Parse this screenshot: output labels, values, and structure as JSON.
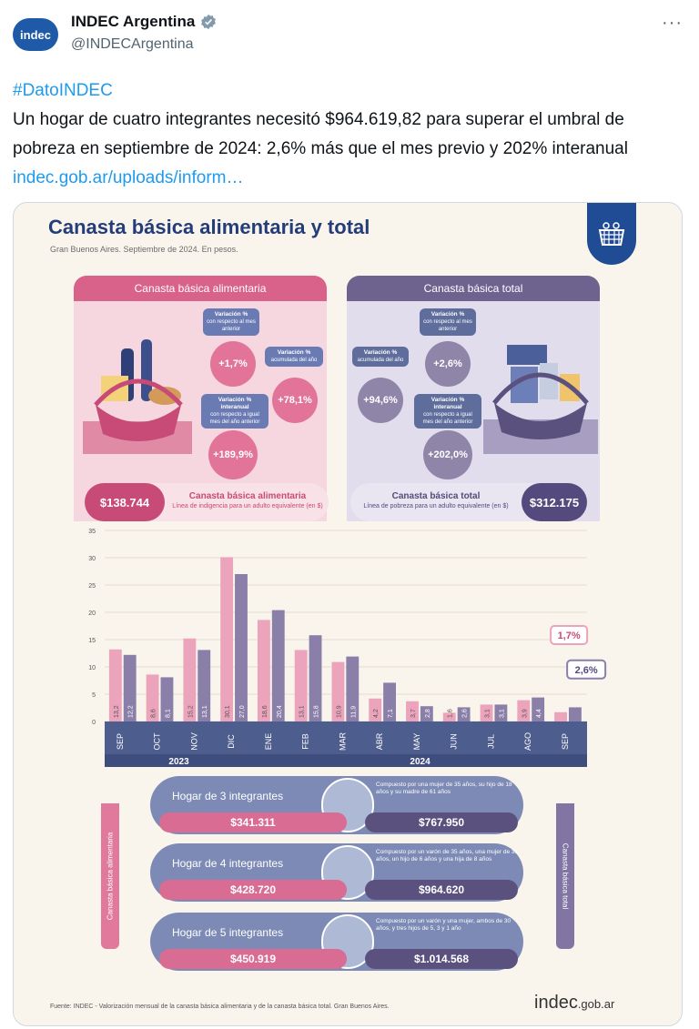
{
  "account": {
    "avatar_text": "indec",
    "display_name": "INDEC Argentina",
    "handle": "@INDECArgentina",
    "more": "···"
  },
  "tweet": {
    "hashtag": "#DatoINDEC",
    "body": "Un hogar de cuatro integrantes necesitó $964.619,82 para superar el umbral de pobreza en septiembre de 2024: 2,6% más que el mes previo y 202% interanual",
    "link": "indec.gob.ar/uploads/inform…"
  },
  "infographic": {
    "title": "Canasta básica alimentaria y total",
    "subtitle": "Gran Buenos Aires. Septiembre de 2024. En pesos.",
    "cba": {
      "header": "Canasta básica alimentaria",
      "var_mensual_label": "Variación %",
      "var_mensual_sub": "con respecto al mes anterior",
      "var_mensual": "+1,7%",
      "var_acum_label": "Variación %",
      "var_acum_sub": "acumulada del año",
      "var_acum": "+78,1%",
      "var_inter_label": "Variación % interanual",
      "var_inter_sub": "con respecto a igual mes del año anterior",
      "var_inter": "+189,9%",
      "amount": "$138.744",
      "summary_title": "Canasta básica alimentaria",
      "summary_sub": "Línea de indigencia para un adulto equivalente (en $)"
    },
    "cbt": {
      "header": "Canasta básica total",
      "var_mensual_label": "Variación %",
      "var_mensual_sub": "con respecto al mes anterior",
      "var_mensual": "+2,6%",
      "var_acum_label": "Variación %",
      "var_acum_sub": "acumulada del año",
      "var_acum": "+94,6%",
      "var_inter_label": "Variación % interanual",
      "var_inter_sub": "con respecto a igual mes del año anterior",
      "var_inter": "+202,0%",
      "amount": "$312.175",
      "summary_title": "Canasta básica total",
      "summary_sub": "Línea de pobreza para un adulto equivalente (en $)"
    },
    "households": [
      {
        "label": "Hogar de 3 integrantes",
        "desc": "Compuesto por una mujer de 35 años, su hijo de 18 años y su madre de 61 años",
        "cba": "$341.311",
        "cbt": "$767.950"
      },
      {
        "label": "Hogar de 4 integrantes",
        "desc": "Compuesto por un varón de 35 años, una mujer de 31 años, un hijo de 6 años y una hija de 8 años",
        "cba": "$428.720",
        "cbt": "$964.620"
      },
      {
        "label": "Hogar de 5 integrantes",
        "desc": "Compuesto por un varón y una mujer, ambos de 30 años, y tres hijos de 5, 3 y 1 año",
        "cba": "$450.919",
        "cbt": "$1.014.568"
      }
    ],
    "side_left": "Canasta básica alimentaria",
    "side_right": "Canasta básica total",
    "source": "Fuente: INDEC - Valorización mensual de la canasta básica alimentaria y de la canasta básica total. Gran Buenos Aires.",
    "logo_main": "indec",
    "logo_suffix": ".gob.ar"
  },
  "chart_data": {
    "type": "bar",
    "categories": [
      "SEP",
      "OCT",
      "NOV",
      "DIC",
      "ENE",
      "FEB",
      "MAR",
      "ABR",
      "MAY",
      "JUN",
      "JUL",
      "AGO",
      "SEP"
    ],
    "year_labels": [
      "2023",
      "2024"
    ],
    "series": [
      {
        "values": [
          13.2,
          8.6,
          15.2,
          30.1,
          18.6,
          13.1,
          10.9,
          4.2,
          3.7,
          1.6,
          3.1,
          3.9,
          1.7
        ]
      },
      {
        "values": [
          12.2,
          8.1,
          13.1,
          27.0,
          20.4,
          15.8,
          11.9,
          7.1,
          2.8,
          2.6,
          3.1,
          4.4,
          2.6
        ]
      }
    ],
    "value_labels_a": [
      "13,2",
      "8,6",
      "15,2",
      "30,1",
      "18,6",
      "13,1",
      "10,9",
      "4,2",
      "3,7",
      "1,6",
      "3,1",
      "3,9",
      ""
    ],
    "value_labels_b": [
      "12,2",
      "8,1",
      "13,1",
      "27,0",
      "20,4",
      "15,8",
      "11,9",
      "7,1",
      "2,8",
      "2,6",
      "3,1",
      "4,4",
      ""
    ],
    "callouts": [
      "1,7%",
      "2,6%"
    ],
    "yticks": [
      "0",
      "5",
      "10",
      "15",
      "20",
      "25",
      "30",
      "35"
    ],
    "ylim": [
      0,
      35
    ],
    "colors": {
      "a": "#eba4bc",
      "b": "#8a7fa9",
      "axis_band": "#4d5d8e"
    },
    "grid": true
  },
  "colors": {
    "title": "#243d7a",
    "link": "#1d9bf0",
    "cba": "#d9628a",
    "cbt": "#6e628f"
  }
}
